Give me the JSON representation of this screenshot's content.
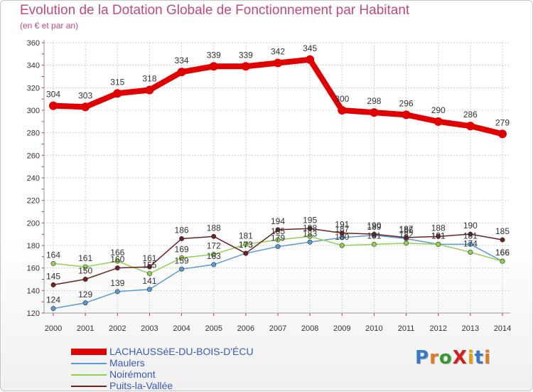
{
  "title": "Evolution de la Dotation Globale de Fonctionnement par Habitant",
  "subtitle": "(en € et par an)",
  "logo": {
    "text": "ProXiti",
    "letters": [
      "P",
      "r",
      "o",
      "X",
      "i",
      "t",
      "i"
    ],
    "colors": [
      "#3a78c8",
      "#e07820",
      "#3a9a30",
      "#d02020",
      "#e0a010",
      "#3a78c8",
      "#e07820"
    ]
  },
  "chart_data": {
    "type": "line",
    "x": [
      2000,
      2001,
      2002,
      2003,
      2004,
      2005,
      2006,
      2007,
      2008,
      2009,
      2010,
      2011,
      2012,
      2013,
      2014
    ],
    "x_tick_labels": [
      "2000",
      "2001",
      "2002",
      "2003",
      "2004",
      "2005",
      "2006",
      "2007",
      "2008",
      "2009",
      "2010",
      "2011",
      "2012",
      "2013",
      "2014"
    ],
    "ylim": [
      120,
      360
    ],
    "y_ticks": [
      120,
      140,
      160,
      180,
      200,
      220,
      240,
      260,
      280,
      300,
      320,
      340,
      360
    ],
    "grid": true,
    "legend_position": "bottom-left",
    "series": [
      {
        "name": "LACHAUSSéE-DU-BOIS-D'ÉCU",
        "color": "#e00000",
        "values": [
          304,
          303,
          315,
          318,
          334,
          339,
          339,
          342,
          345,
          300,
          298,
          296,
          290,
          286,
          279
        ],
        "labels": [
          "304",
          "303",
          "315",
          "318",
          "334",
          "339",
          "339",
          "342",
          "345",
          "300",
          "298",
          "296",
          "290",
          "286",
          "279"
        ]
      },
      {
        "name": "Maulers",
        "color": "#5b9bd5",
        "values": [
          124,
          129,
          139,
          141,
          159,
          163,
          173,
          179,
          183,
          187,
          189,
          186,
          181,
          181,
          166
        ],
        "labels": [
          "124",
          "129",
          "139",
          "141",
          "159",
          "163",
          "173",
          "179",
          "183",
          "187",
          "189",
          "186",
          "181",
          "181",
          "166"
        ]
      },
      {
        "name": "Noirémont",
        "color": "#92d050",
        "values": [
          164,
          161,
          166,
          155,
          169,
          172,
          181,
          185,
          188,
          180,
          181,
          182,
          181,
          174,
          166
        ],
        "labels": [
          "164",
          "161",
          "166",
          "155",
          "169",
          "172",
          "181",
          "185",
          "188",
          "180",
          "181",
          "182",
          "181",
          "174",
          "166"
        ]
      },
      {
        "name": "Puits-la-Vallée",
        "color": "#6b2222",
        "values": [
          145,
          150,
          160,
          161,
          186,
          188,
          173,
          194,
          195,
          191,
          190,
          187,
          188,
          190,
          185
        ],
        "labels": [
          "145",
          "150",
          "160",
          "161",
          "186",
          "188",
          "173",
          "194",
          "195",
          "191",
          "190",
          "187",
          "188",
          "190",
          "185"
        ]
      }
    ]
  }
}
